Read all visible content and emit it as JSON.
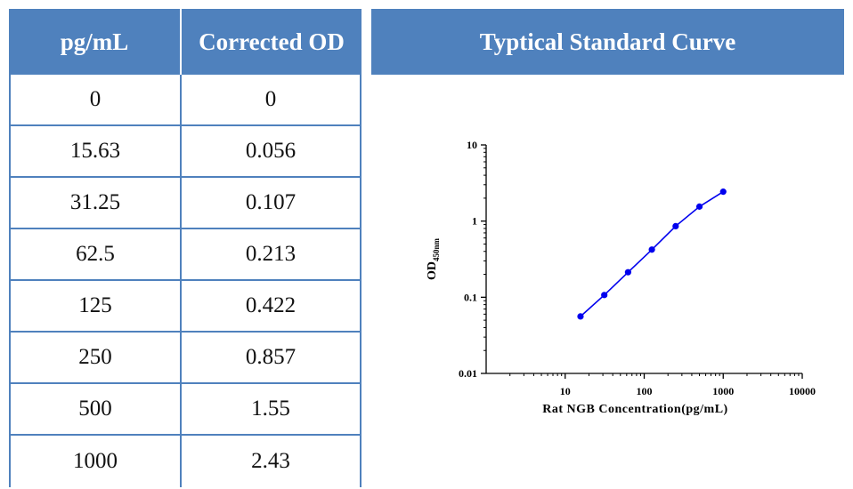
{
  "table": {
    "headers": [
      "pg/mL",
      "Corrected OD"
    ],
    "rows": [
      [
        "0",
        "0"
      ],
      [
        "15.63",
        "0.056"
      ],
      [
        "31.25",
        "0.107"
      ],
      [
        "62.5",
        "0.213"
      ],
      [
        "125",
        "0.422"
      ],
      [
        "250",
        "0.857"
      ],
      [
        "500",
        "1.55"
      ],
      [
        "1000",
        "2.43"
      ]
    ]
  },
  "chart_header": "Typtical Standard Curve",
  "colors": {
    "header_bg": "#4f81bd",
    "header_text": "#ffffff",
    "border": "#4f81bd",
    "series": "#0000ee"
  },
  "chart_data": {
    "type": "line",
    "title": "Typtical Standard Curve",
    "xlabel": "Rat NGB Concentration(pg/mL)",
    "ylabel_main": "OD",
    "ylabel_sub": "450nm",
    "xscale": "log",
    "yscale": "log",
    "xlim": [
      1,
      10000
    ],
    "ylim": [
      0.01,
      10
    ],
    "xticks": [
      10,
      100,
      1000,
      10000
    ],
    "xtick_labels": [
      "10",
      "100",
      "1000",
      "10000"
    ],
    "yticks": [
      0.01,
      0.1,
      1,
      10
    ],
    "ytick_labels": [
      "0.01",
      "0.1",
      "1",
      "10"
    ],
    "grid": false,
    "series": [
      {
        "x": [
          15.63,
          31.25,
          62.5,
          125,
          250,
          500,
          1000
        ],
        "y": [
          0.056,
          0.107,
          0.213,
          0.422,
          0.857,
          1.55,
          2.43
        ]
      }
    ]
  }
}
